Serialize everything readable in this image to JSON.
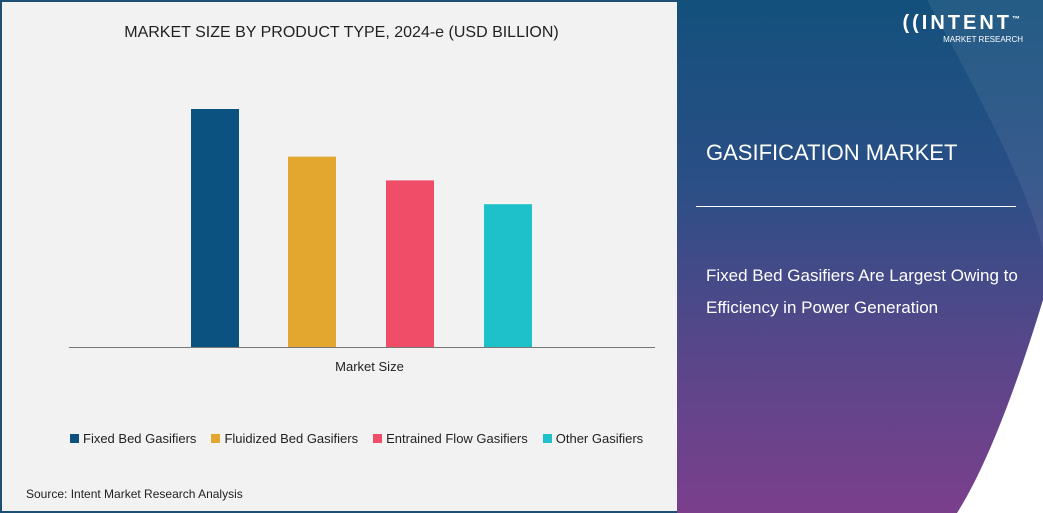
{
  "chart_data": {
    "type": "bar",
    "title": "MARKET SIZE BY PRODUCT TYPE, 2024-e (USD BILLION)",
    "xlabel": "Market Size",
    "ylabel": "",
    "categories": [
      "Market Size"
    ],
    "series": [
      {
        "name": "Fixed Bed Gasifiers",
        "values": [
          100
        ],
        "color": "#0b5280"
      },
      {
        "name": "Fluidized Bed Gasifiers",
        "values": [
          80
        ],
        "color": "#e3a62f"
      },
      {
        "name": "Entrained Flow Gasifiers",
        "values": [
          70
        ],
        "color": "#ef4d68"
      },
      {
        "name": "Other Gasifiers",
        "values": [
          60
        ],
        "color": "#1ec0c9"
      }
    ],
    "ylim": [
      0,
      100
    ],
    "grid": false,
    "legend": "bottom"
  },
  "source": "Source: Intent Market Research Analysis",
  "brand": {
    "name": "INTENT",
    "sub": "MARKET RESEARCH",
    "tm": "™"
  },
  "panel": {
    "title": "GASIFICATION MARKET",
    "description": "Fixed Bed Gasifiers Are Largest Owing to Efficiency in Power Generation"
  }
}
